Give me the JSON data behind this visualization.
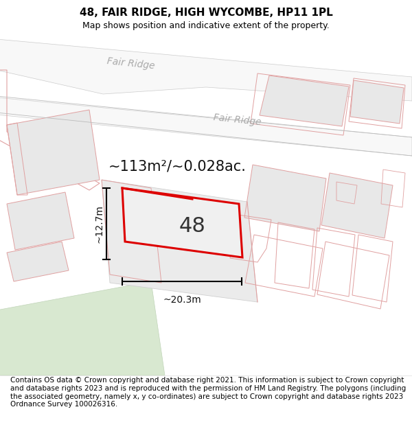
{
  "title": "48, FAIR RIDGE, HIGH WYCOMBE, HP11 1PL",
  "subtitle": "Map shows position and indicative extent of the property.",
  "area_text": "~113m²/~0.028ac.",
  "dim_width": "~20.3m",
  "dim_height": "~12.7m",
  "property_number": "48",
  "footer": "Contains OS data © Crown copyright and database right 2021. This information is subject to Crown copyright and database rights 2023 and is reproduced with the permission of HM Land Registry. The polygons (including the associated geometry, namely x, y co-ordinates) are subject to Crown copyright and database rights 2023 Ordnance Survey 100026316.",
  "map_bg": "#ffffff",
  "road_color": "#f0f0f0",
  "road_edge": "#cccccc",
  "building_fill": "#e8e8e8",
  "building_edge": "#e0a0a0",
  "property_fill": "#e8e8e8",
  "highlight_color": "#dd0000",
  "green_fill": "#d8e8d0",
  "green_edge": "#c0d4b8",
  "street_label_color": "#aaaaaa",
  "title_fontsize": 11,
  "subtitle_fontsize": 9,
  "footer_fontsize": 7.5,
  "area_fontsize": 15,
  "number_fontsize": 22,
  "dim_fontsize": 10
}
